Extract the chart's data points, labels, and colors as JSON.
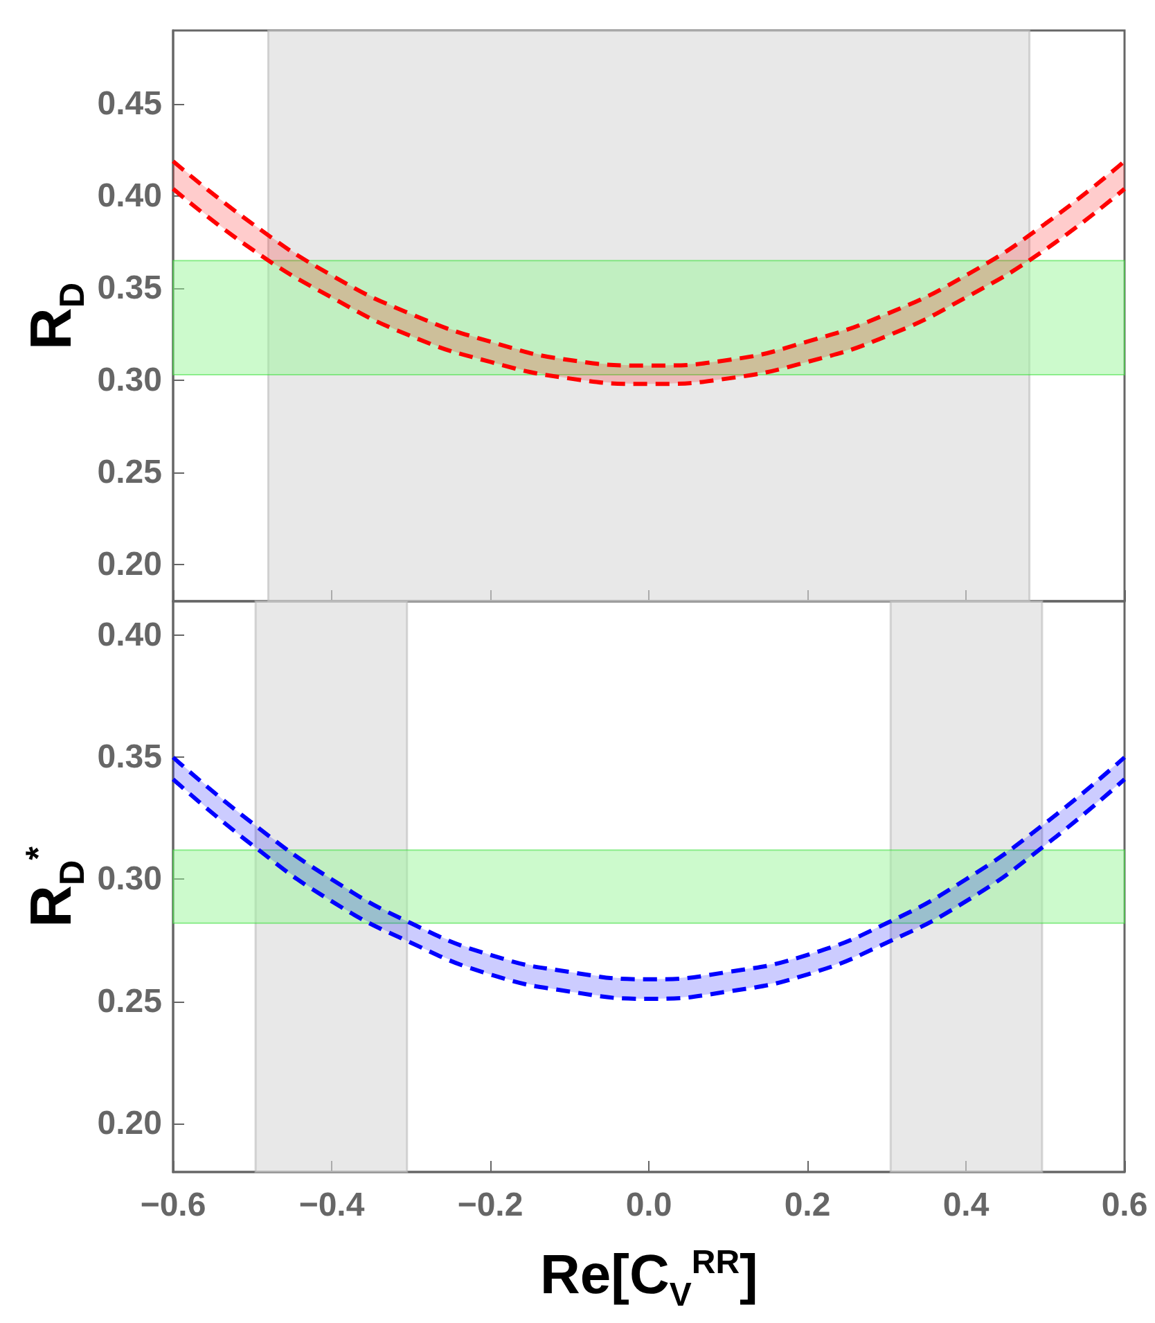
{
  "chart_data": [
    {
      "type": "line",
      "ylabel": "R$_{D}$",
      "x": [
        -0.6,
        -0.5,
        -0.4,
        -0.3,
        -0.2,
        -0.1,
        0,
        0.1,
        0.2,
        0.3,
        0.4,
        0.5,
        0.6
      ],
      "series": [
        {
          "color": "#ff0000",
          "values": [
            0.419,
            0.385,
            0.357,
            0.336,
            0.321,
            0.311,
            0.308,
            0.311,
            0.321,
            0.336,
            0.357,
            0.385,
            0.419
          ],
          "lower": [
            0.404,
            0.371,
            0.345,
            0.324,
            0.31,
            0.301,
            0.298,
            0.301,
            0.31,
            0.324,
            0.345,
            0.371,
            0.404
          ],
          "upper": [
            0.419,
            0.385,
            0.357,
            0.336,
            0.321,
            0.311,
            0.308,
            0.311,
            0.321,
            0.336,
            0.357,
            0.385,
            0.419
          ]
        },
        {
          "color": "#ff0000",
          "values": [
            0.404,
            0.371,
            0.345,
            0.324,
            0.31,
            0.301,
            0.298,
            0.301,
            0.31,
            0.324,
            0.345,
            0.371,
            0.404
          ]
        }
      ],
      "xlim": [
        -0.6,
        0.6
      ],
      "ylim": [
        0.18,
        0.49
      ],
      "xticks": [
        {
          "value": -0.6,
          "label": null
        },
        {
          "value": -0.4,
          "label": null
        },
        {
          "value": -0.2,
          "label": null
        },
        {
          "value": 0,
          "label": null
        },
        {
          "value": 0.2,
          "label": null
        },
        {
          "value": 0.4,
          "label": null
        },
        {
          "value": 0.6,
          "label": null
        }
      ],
      "yticks": [
        {
          "value": 0.2,
          "label": "0.20"
        },
        0.25,
        {
          "value": 0.3,
          "label": "0.30"
        },
        0.35,
        {
          "value": 0.4,
          "label": "0.40"
        },
        0.45
      ],
      "tick_labels": "y",
      "bands": [
        {
          "axis": "x",
          "from": -0.48,
          "to": 0.48,
          "color": "#d9d9d9"
        },
        {
          "axis": "y",
          "from": 0.303,
          "to": 0.365,
          "color": "#99f599"
        }
      ],
      "marker": "none",
      "line_style": "dashed",
      "grid": false
    },
    {
      "type": "line",
      "ylabel": "R$_{D}$$^{*}$",
      "xlabel": "Re[C$_{V}$$^{RR}$]",
      "x": [
        -0.6,
        -0.5,
        -0.4,
        -0.3,
        -0.2,
        -0.1,
        0,
        0.1,
        0.2,
        0.3,
        0.4,
        0.5,
        0.6
      ],
      "series": [
        {
          "color": "#0000ff",
          "values": [
            0.35,
            0.323,
            0.3,
            0.282,
            0.269,
            0.262,
            0.259,
            0.262,
            0.269,
            0.282,
            0.3,
            0.323,
            0.35
          ],
          "lower": [
            0.341,
            0.314,
            0.291,
            0.274,
            0.261,
            0.254,
            0.251,
            0.254,
            0.261,
            0.274,
            0.291,
            0.314,
            0.341
          ],
          "upper": [
            0.35,
            0.323,
            0.3,
            0.282,
            0.269,
            0.262,
            0.259,
            0.262,
            0.269,
            0.282,
            0.3,
            0.323,
            0.35
          ]
        },
        {
          "color": "#0000ff",
          "values": [
            0.341,
            0.314,
            0.291,
            0.274,
            0.261,
            0.254,
            0.251,
            0.254,
            0.261,
            0.274,
            0.291,
            0.314,
            0.341
          ]
        }
      ],
      "xlim": [
        -0.6,
        0.6
      ],
      "ylim": [
        0.18,
        0.414
      ],
      "xticks": [
        {
          "value": -0.6,
          "label": "−0.6"
        },
        {
          "value": -0.4,
          "label": "−0.4"
        },
        {
          "value": -0.2,
          "label": "−0.2"
        },
        {
          "value": 0,
          "label": "0.0"
        },
        {
          "value": 0.2,
          "label": "0.2"
        },
        {
          "value": 0.4,
          "label": "0.4"
        },
        {
          "value": 0.6,
          "label": "0.6"
        }
      ],
      "yticks": [
        {
          "value": 0.2,
          "label": "0.20"
        },
        0.25,
        {
          "value": 0.3,
          "label": "0.30"
        },
        0.35,
        {
          "value": 0.4,
          "label": "0.40"
        }
      ],
      "bands": [
        {
          "axis": "x",
          "from": -0.496,
          "to": -0.305,
          "color": "#d9d9d9"
        },
        {
          "axis": "x",
          "from": 0.305,
          "to": 0.496,
          "color": "#d9d9d9"
        },
        {
          "axis": "y",
          "from": 0.282,
          "to": 0.312,
          "color": "#99f599"
        }
      ],
      "marker": "none",
      "line_style": "dashed",
      "grid": false
    }
  ]
}
